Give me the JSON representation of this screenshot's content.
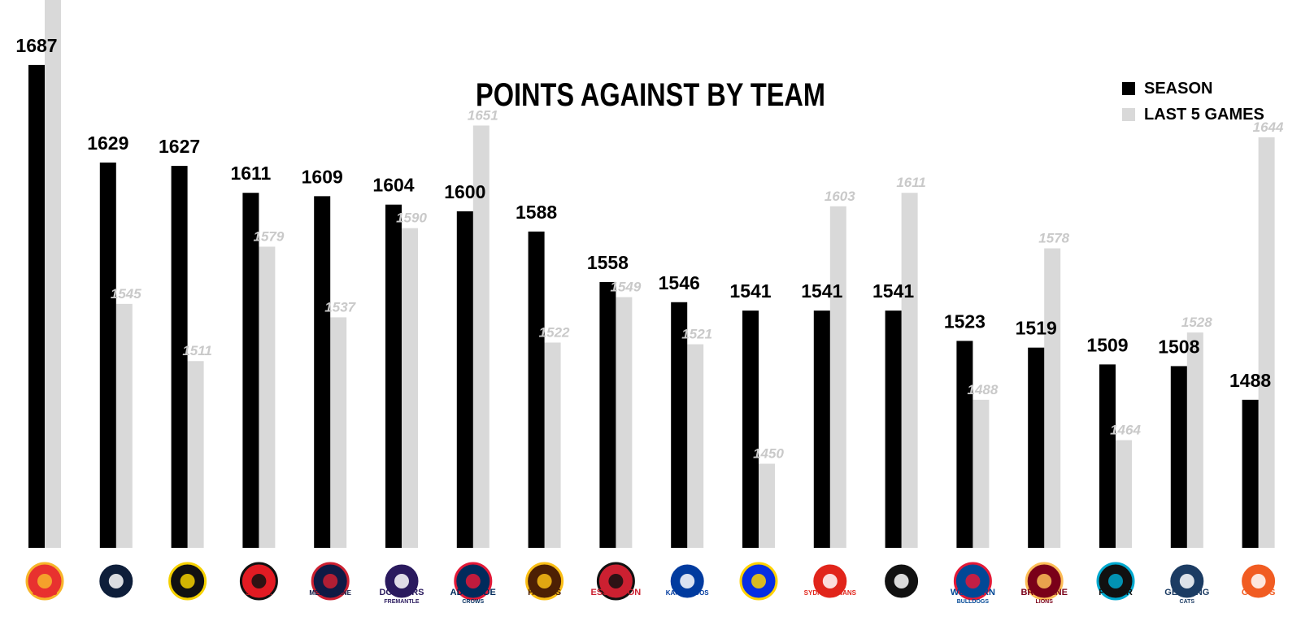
{
  "chart_data": {
    "type": "bar",
    "title": "POINTS AGAINST BY TEAM",
    "xlabel": "",
    "ylabel": "",
    "categories": [
      "SUNS",
      "BLUES",
      "TIGERS",
      "ST K.F.C.",
      "MELBOURNE",
      "DOCKERS",
      "CROWS",
      "HAWKS",
      "ESSENDON",
      "KANGAROOS",
      "EAGLES",
      "SYDNEY SWANS",
      "MAGPIES",
      "WESTERN BULLDOGS",
      "LIONS",
      "POWER",
      "CATS",
      "GIANTS"
    ],
    "series": [
      {
        "name": "SEASON",
        "color": "#000000",
        "values": [
          1687,
          1629,
          1627,
          1611,
          1609,
          1604,
          1600,
          1588,
          1558,
          1546,
          1541,
          1541,
          1541,
          1523,
          1519,
          1509,
          1508,
          1488
        ]
      },
      {
        "name": "LAST 5 GAMES",
        "color": "#d9d9d9",
        "values": [
          1769,
          1545,
          1511,
          1579,
          1537,
          1590,
          1651,
          1522,
          1549,
          1521,
          1450,
          1603,
          1611,
          1488,
          1578,
          1464,
          1528,
          1644
        ]
      }
    ],
    "ylim": [
      1400,
      1780
    ],
    "grid": false,
    "legend_position": "top-right"
  },
  "logos": [
    {
      "text": "SUNS",
      "sub": "",
      "color": "#e8312f",
      "accent": "#f7b52a",
      "icon": "sun-icon"
    },
    {
      "text": "",
      "sub": "",
      "color": "#0e1e3a",
      "accent": "#ffffff",
      "icon": "cfc-monogram-icon"
    },
    {
      "text": "",
      "sub": "",
      "color": "#111111",
      "accent": "#f5d100",
      "icon": "tiger-icon"
    },
    {
      "text": "St K.F.C.",
      "sub": "",
      "color": "#e21b23",
      "accent": "#111111",
      "icon": "cross-shield-icon"
    },
    {
      "text": "MELBOURNE",
      "sub": "",
      "color": "#0f1a45",
      "accent": "#cc2031",
      "icon": "mfc-monogram-icon"
    },
    {
      "text": "DOCKERS",
      "sub": "FREMANTLE",
      "color": "#2a1a5e",
      "accent": "#ffffff",
      "icon": "anchor-icon"
    },
    {
      "text": "ADELAIDE",
      "sub": "CROWS",
      "color": "#002b5c",
      "accent": "#e21937",
      "icon": "crow-icon"
    },
    {
      "text": "HAWKS",
      "sub": "",
      "color": "#4d2004",
      "accent": "#fbbf15",
      "icon": "hawk-icon"
    },
    {
      "text": "ESSENDON",
      "sub": "",
      "color": "#cc2031",
      "accent": "#111111",
      "icon": "plane-icon"
    },
    {
      "text": "KANGAROOS",
      "sub": "",
      "color": "#013b9f",
      "accent": "#ffffff",
      "icon": "kangaroo-icon"
    },
    {
      "text": "",
      "sub": "",
      "color": "#062ee2",
      "accent": "#ffd200",
      "icon": "eagle-icon"
    },
    {
      "text": "SYDNEY SWANS",
      "sub": "",
      "color": "#e1251b",
      "accent": "#ffffff",
      "icon": "swan-icon"
    },
    {
      "text": "",
      "sub": "",
      "color": "#111111",
      "accent": "#ffffff",
      "icon": "magpie-icon"
    },
    {
      "text": "WESTERN",
      "sub": "BULLDOGS",
      "color": "#014896",
      "accent": "#e31937",
      "icon": "bulldog-icon"
    },
    {
      "text": "BRISBANE",
      "sub": "LIONS",
      "color": "#7a0019",
      "accent": "#fdbe57",
      "icon": "lion-icon"
    },
    {
      "text": "POWER",
      "sub": "",
      "color": "#111111",
      "accent": "#00a9cf",
      "icon": "fist-icon"
    },
    {
      "text": "GEELONG",
      "sub": "CATS",
      "color": "#1c3c63",
      "accent": "#ffffff",
      "icon": "cat-icon"
    },
    {
      "text": "GIANTS",
      "sub": "",
      "color": "#f15c22",
      "accent": "#ffffff",
      "icon": "g-letter-icon"
    }
  ]
}
